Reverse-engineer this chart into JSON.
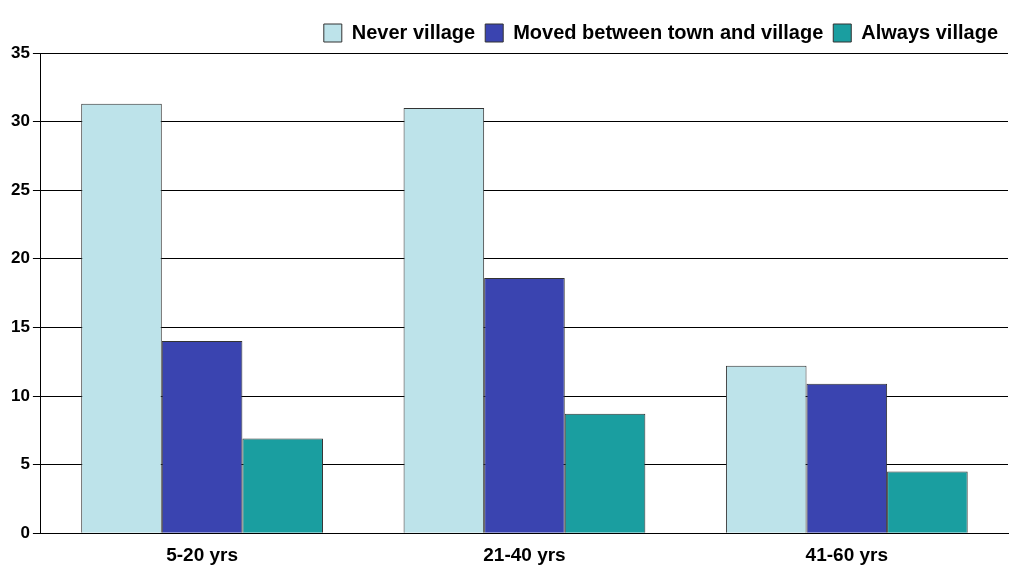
{
  "chart_data": {
    "type": "bar",
    "categories": [
      "5-20 yrs",
      "21-40 yrs",
      "41-60 yrs"
    ],
    "series": [
      {
        "name": "Never village",
        "color": "#bde3ea",
        "values": [
          31.3,
          31.0,
          12.2
        ]
      },
      {
        "name": "Moved between town and village",
        "color": "#3a44b0",
        "values": [
          14.0,
          18.6,
          10.9
        ]
      },
      {
        "name": "Always village",
        "color": "#1a9ea0",
        "values": [
          6.9,
          8.7,
          4.5
        ]
      }
    ],
    "ylim": [
      0,
      35
    ],
    "yticks": [
      0,
      5,
      10,
      15,
      20,
      25,
      30,
      35
    ],
    "grid": "y",
    "legend": "top right"
  }
}
